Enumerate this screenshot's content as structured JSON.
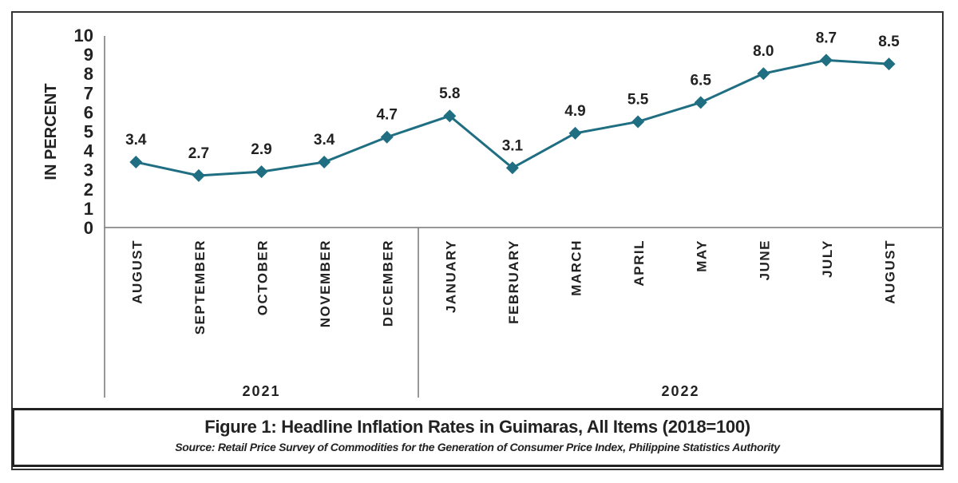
{
  "chart_data": {
    "type": "line",
    "title": "Figure 1: Headline Inflation Rates in Guimaras, All Items (2018=100)",
    "source": "Source: Retail Price Survey of Commodities for the Generation of Consumer Price Index, Philippine Statistics Authority",
    "ylabel": "IN PERCENT",
    "ylim": [
      0,
      10
    ],
    "yticks": [
      "0",
      "1",
      "2",
      "3",
      "4",
      "5",
      "6",
      "7",
      "8",
      "9",
      "10"
    ],
    "categories": [
      "AUGUST",
      "SEPTEMBER",
      "OCTOBER",
      "NOVEMBER",
      "DECEMBER",
      "JANUARY",
      "FEBRUARY",
      "MARCH",
      "APRIL",
      "MAY",
      "JUNE",
      "JULY",
      "AUGUST"
    ],
    "groups": [
      {
        "label": "2021",
        "count": 5
      },
      {
        "label": "2022",
        "count": 8
      }
    ],
    "values": [
      3.4,
      2.7,
      2.9,
      3.4,
      4.7,
      5.8,
      3.1,
      4.9,
      5.5,
      6.5,
      8.0,
      8.7,
      8.5
    ],
    "data_labels": [
      "3.4",
      "2.7",
      "2.9",
      "3.4",
      "4.7",
      "5.8",
      "3.1",
      "4.9",
      "5.5",
      "6.5",
      "8.0",
      "8.7",
      "8.5"
    ],
    "line_color": "#1f6e82",
    "marker": "diamond",
    "grid": false
  }
}
